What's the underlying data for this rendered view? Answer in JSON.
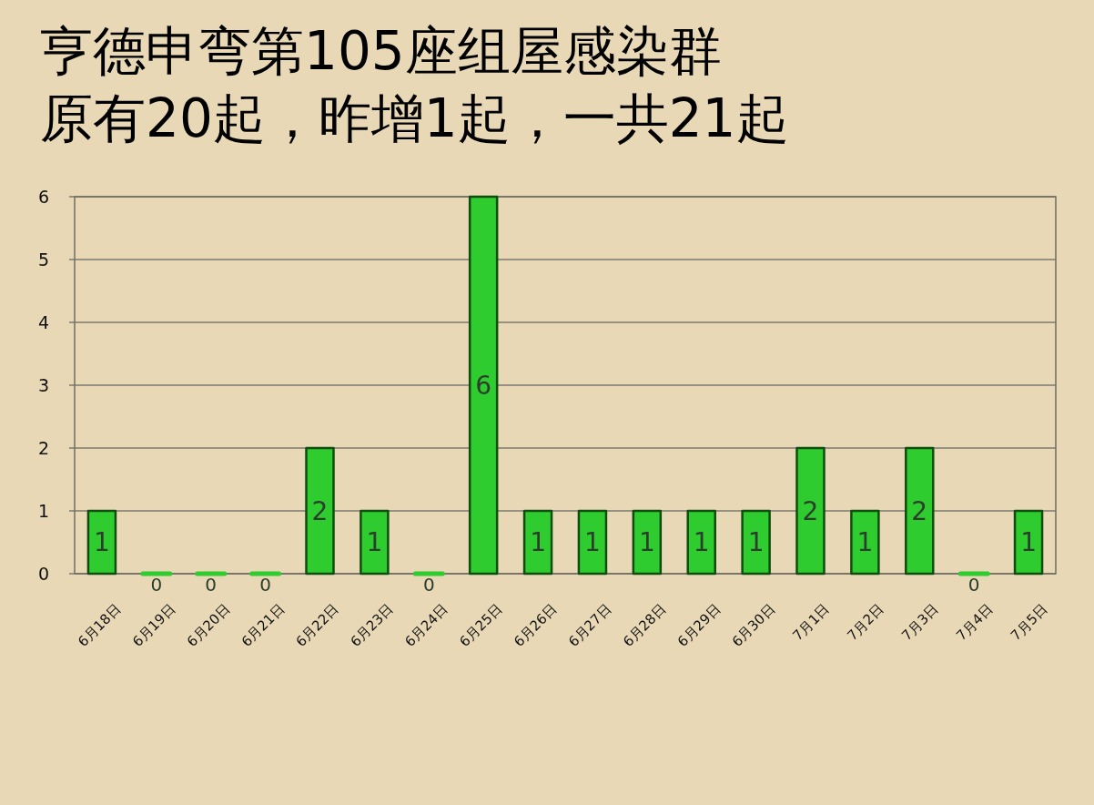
{
  "chart_data": {
    "type": "bar",
    "title": "亨德申弯第105座组屋感染群",
    "subtitle": "原有20起，昨增1起，一共21起",
    "categories": [
      "6月18日",
      "6月19日",
      "6月20日",
      "6月21日",
      "6月22日",
      "6月23日",
      "6月24日",
      "6月25日",
      "6月26日",
      "6月27日",
      "6月28日",
      "6月29日",
      "6月30日",
      "7月1日",
      "7月2日",
      "7月3日",
      "7月4日",
      "7月5日"
    ],
    "values": [
      1,
      0,
      0,
      0,
      2,
      1,
      0,
      6,
      1,
      1,
      1,
      1,
      1,
      2,
      1,
      2,
      0,
      1
    ],
    "color": "#2fcc2f",
    "ylim": [
      0,
      6
    ],
    "yticks": [
      0,
      1,
      2,
      3,
      4,
      5,
      6
    ],
    "grid": "y",
    "data_labels": true
  }
}
